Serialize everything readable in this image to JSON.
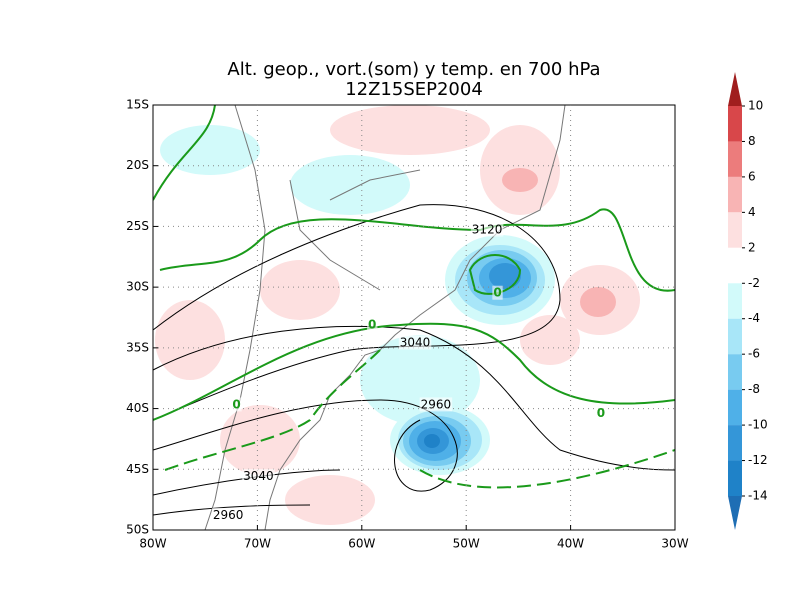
{
  "title": [
    "Alt. geop., vort.(som) y temp. en 700 hPa",
    "12Z15SEP2004"
  ],
  "map": {
    "xlim": [
      -80,
      -30
    ],
    "ylim": [
      -50,
      -15
    ],
    "xticks": [
      {
        "value": -80,
        "label": "80W"
      },
      {
        "value": -70,
        "label": "70W"
      },
      {
        "value": -60,
        "label": "60W"
      },
      {
        "value": -50,
        "label": "50W"
      },
      {
        "value": -40,
        "label": "40W"
      },
      {
        "value": -30,
        "label": "30W"
      }
    ],
    "yticks": [
      {
        "value": -15,
        "label": "15S"
      },
      {
        "value": -20,
        "label": "20S"
      },
      {
        "value": -25,
        "label": "25S"
      },
      {
        "value": -30,
        "label": "30S"
      },
      {
        "value": -35,
        "label": "35S"
      },
      {
        "value": -40,
        "label": "40S"
      },
      {
        "value": -45,
        "label": "45S"
      },
      {
        "value": -50,
        "label": "50S"
      }
    ],
    "grid": true,
    "contour_labels": [
      {
        "value": 3120,
        "lon": -48,
        "lat": -25.3,
        "color": "#000000"
      },
      {
        "value": 3040,
        "lon": -54.9,
        "lat": -34.6,
        "color": "#000000"
      },
      {
        "value": 2960,
        "lon": -52.9,
        "lat": -39.7,
        "color": "#000000"
      },
      {
        "value": 3040,
        "lon": -69.9,
        "lat": -45.6,
        "color": "#000000"
      },
      {
        "value": 2960,
        "lon": -72.8,
        "lat": -48.8,
        "color": "#000000"
      },
      {
        "value": 0,
        "lon": -47,
        "lat": -30.5,
        "color": "#1a9a1a"
      },
      {
        "value": 0,
        "lon": -59,
        "lat": -33.1,
        "color": "#1a9a1a"
      },
      {
        "value": 0,
        "lon": -72,
        "lat": -39.7,
        "color": "#1a9a1a"
      },
      {
        "value": 0,
        "lon": -37.1,
        "lat": -40.4,
        "color": "#1a9a1a"
      }
    ]
  },
  "colorbar": {
    "levels": [
      10,
      8,
      6,
      4,
      2,
      -2,
      -4,
      -6,
      -8,
      -10,
      -12,
      -14
    ],
    "colors": [
      "#a01e1e",
      "#d8474a",
      "#ec7c7c",
      "#f8b4b4",
      "#fde0e0",
      "#ffffff",
      "#d2fafa",
      "#a8e6f8",
      "#78cbf0",
      "#4fb0e8",
      "#3496d8",
      "#1f82c8",
      "#1e6eb4"
    ]
  }
}
